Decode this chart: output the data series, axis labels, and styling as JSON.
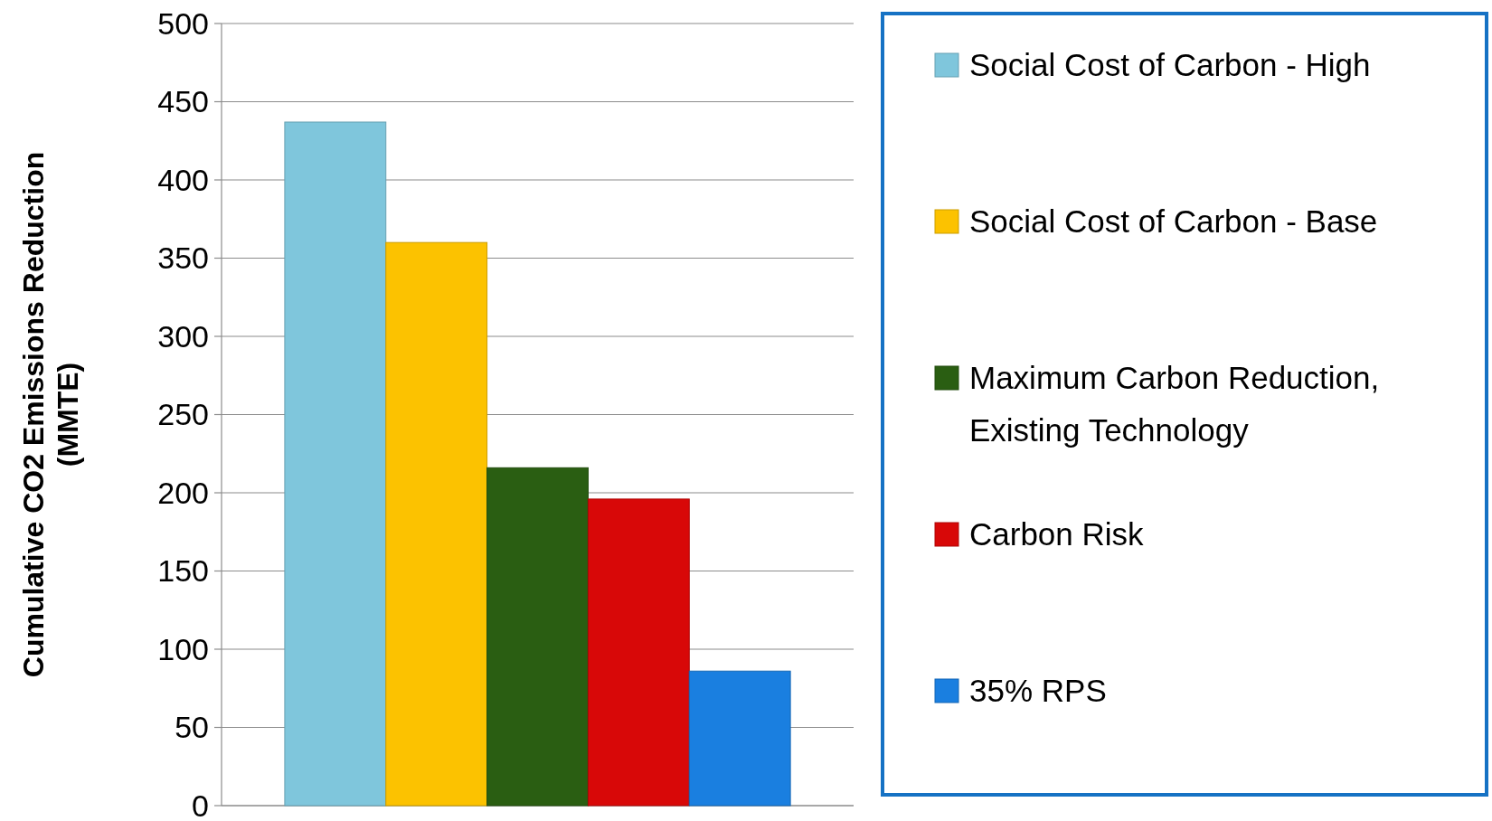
{
  "chart_data": {
    "type": "bar",
    "ylabel": "Cumulative CO2 Emissions Reduction (MMTE)",
    "categories": [
      null
    ],
    "series": [
      {
        "name": "Social Cost of Carbon - High",
        "color": "#7fc6dc",
        "values": [
          437
        ]
      },
      {
        "name": "Social Cost of Carbon - Base",
        "color": "#fcc200",
        "values": [
          360
        ]
      },
      {
        "name": "Maximum Carbon Reduction, Existing Technology",
        "color": "#2a5e12",
        "values": [
          216
        ]
      },
      {
        "name": "Carbon Risk",
        "color": "#d80808",
        "values": [
          196
        ]
      },
      {
        "name": "35% RPS",
        "color": "#1a7fe0",
        "values": [
          86
        ]
      }
    ],
    "ylim": [
      0,
      500
    ],
    "yticks": [
      0,
      50,
      100,
      150,
      200,
      250,
      300,
      350,
      400,
      450,
      500
    ],
    "grid": "y",
    "legend": "right"
  }
}
